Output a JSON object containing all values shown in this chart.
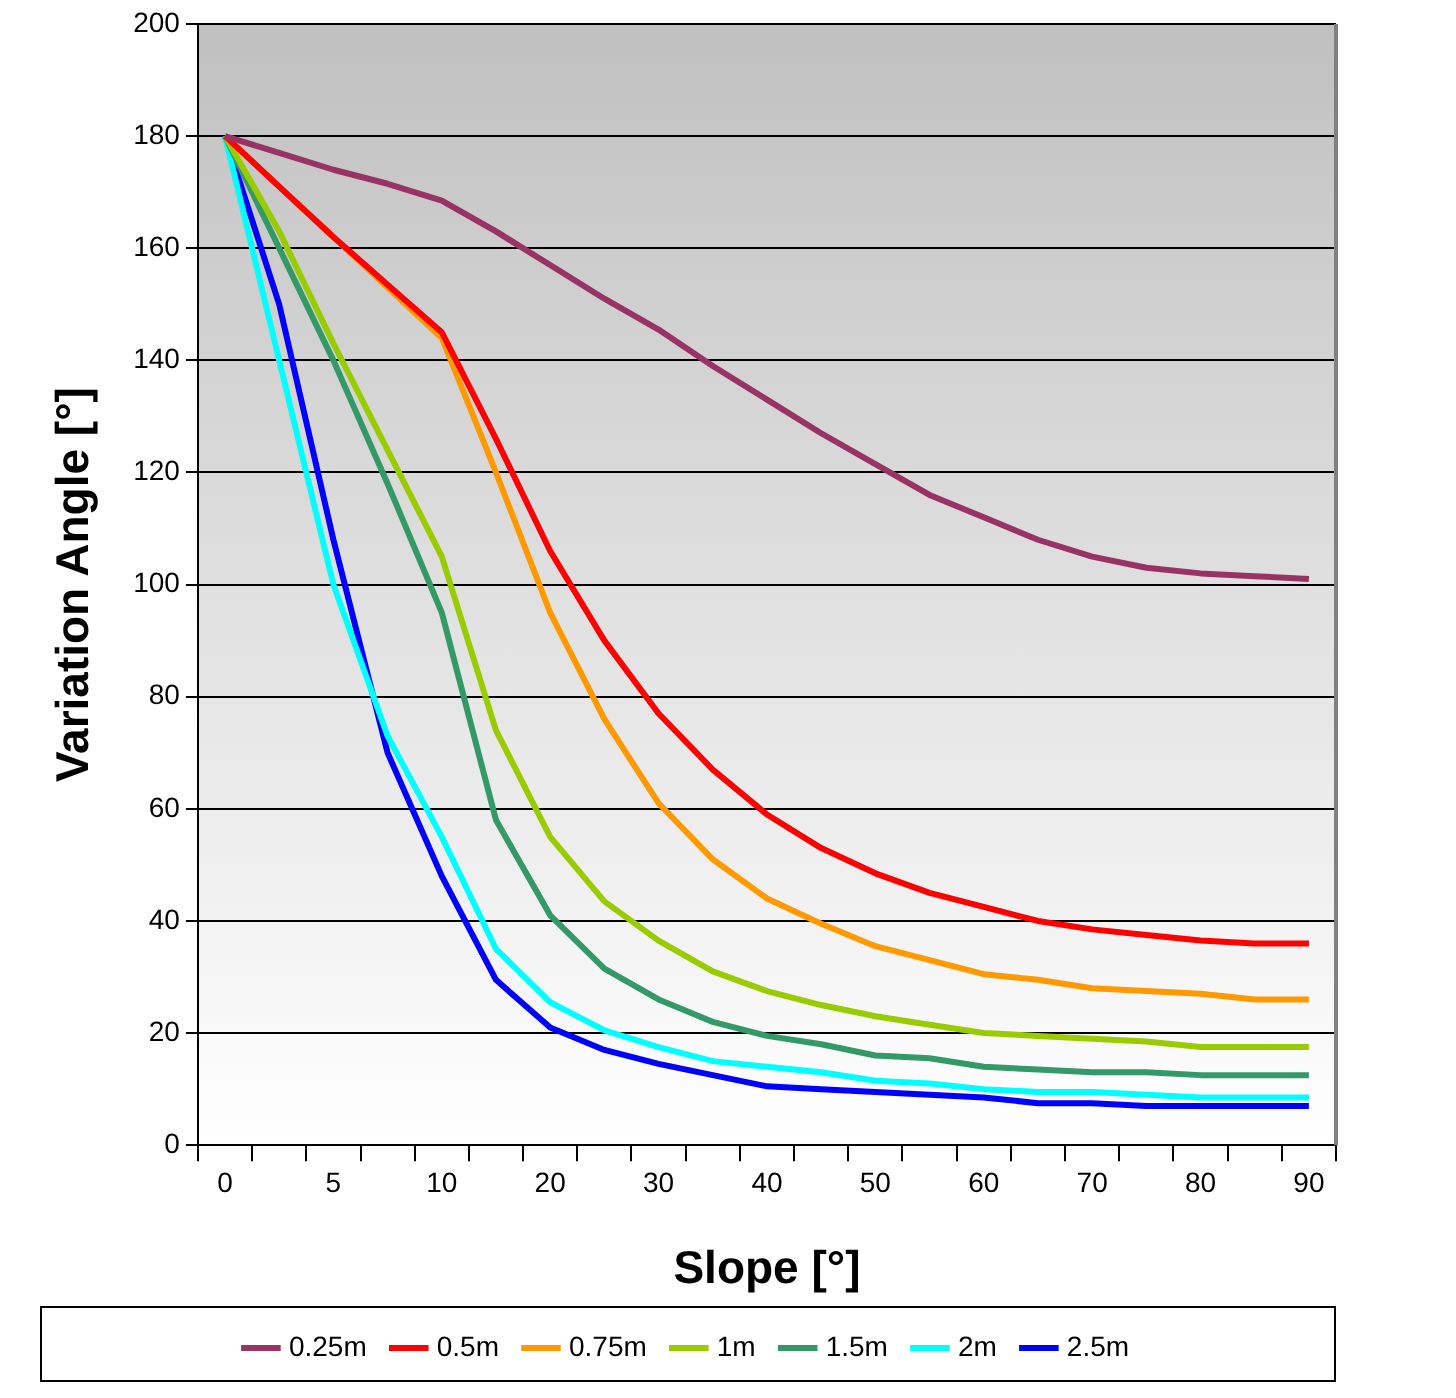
{
  "chart_data": {
    "type": "line",
    "xlabel": "Slope [°]",
    "ylabel": "Variation Angle [°]",
    "categories": [
      "0",
      null,
      "5",
      null,
      "10",
      null,
      "20",
      null,
      "30",
      null,
      "40",
      null,
      "50",
      null,
      "60",
      null,
      "70",
      null,
      "80",
      null,
      "90"
    ],
    "ylim": [
      0,
      200
    ],
    "yticks": [
      0,
      20,
      40,
      60,
      80,
      100,
      120,
      140,
      160,
      180,
      200
    ],
    "grid": "y",
    "legend": "bottom",
    "marker": "none",
    "line_style": "solid",
    "series": [
      {
        "name": "0.25m",
        "color": "#993366",
        "values": [
          180,
          177,
          174,
          171.5,
          168.5,
          163,
          157,
          151,
          145.5,
          139,
          133,
          127,
          121.5,
          116,
          112,
          108,
          105,
          103,
          102,
          101.5,
          101
        ]
      },
      {
        "name": "0.5m",
        "color": "#ff0000",
        "values": [
          180,
          171,
          162,
          153.5,
          145,
          126,
          106,
          90,
          77,
          67,
          59,
          53,
          48.5,
          45,
          42.5,
          40,
          38.5,
          37.5,
          36.5,
          36,
          36
        ]
      },
      {
        "name": "0.75m",
        "color": "#ff9900",
        "values": [
          180,
          171,
          162,
          153,
          144,
          120,
          95,
          76,
          61,
          51,
          44,
          39.5,
          35.5,
          33,
          30.5,
          29.5,
          28,
          27.5,
          27,
          26,
          26
        ]
      },
      {
        "name": "1m",
        "color": "#99cc00",
        "values": [
          180,
          163,
          143,
          124,
          105,
          74,
          55,
          43.5,
          36.5,
          31,
          27.5,
          25,
          23,
          21.5,
          20,
          19.5,
          19,
          18.5,
          17.5,
          17.5,
          17.5
        ]
      },
      {
        "name": "1.5m",
        "color": "#339966",
        "values": [
          180,
          160,
          140,
          118,
          95,
          58,
          41,
          31.5,
          26,
          22,
          19.5,
          18,
          16,
          15.5,
          14,
          13.5,
          13,
          13,
          12.5,
          12.5,
          12.5
        ]
      },
      {
        "name": "2m",
        "color": "#00ffff",
        "values": [
          180,
          140,
          100,
          73,
          55,
          35,
          25.5,
          20.5,
          17.5,
          15,
          14,
          13,
          11.5,
          11,
          10,
          9.5,
          9.5,
          9,
          8.5,
          8.5,
          8.5
        ]
      },
      {
        "name": "2.5m",
        "color": "#0000ff",
        "values": [
          180,
          150,
          108,
          70,
          48,
          29.5,
          21,
          17,
          14.5,
          12.5,
          10.5,
          10,
          9.5,
          9,
          8.5,
          7.5,
          7.5,
          7,
          7,
          7,
          7
        ]
      }
    ]
  }
}
